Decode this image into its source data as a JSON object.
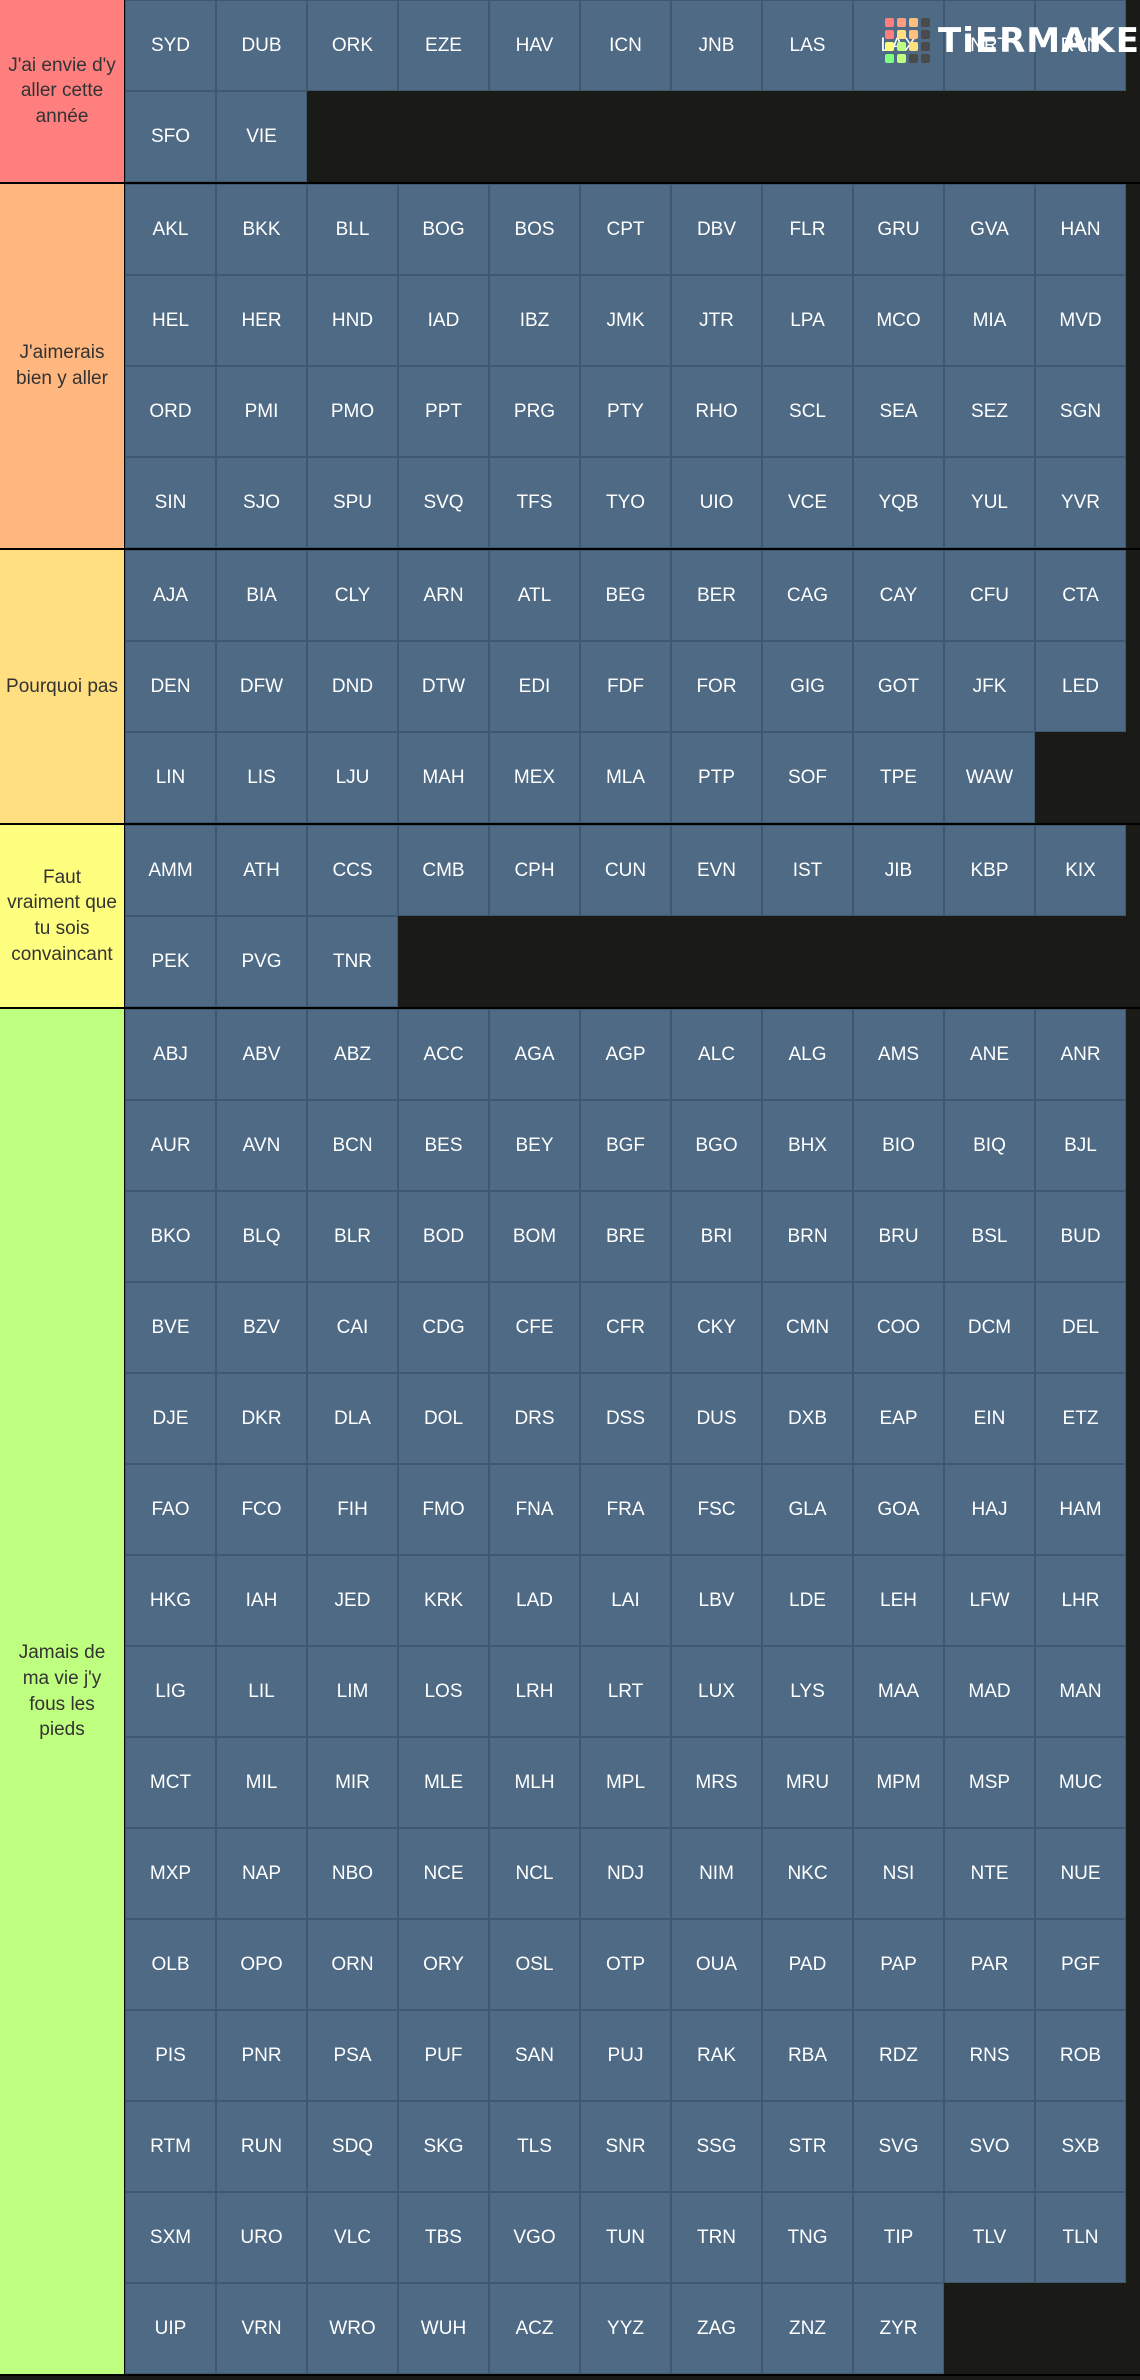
{
  "logo": {
    "text": "TiERMAKER",
    "grid_colors": [
      "#ff7f7f",
      "#ff9f7f",
      "#ffbf7f",
      "#4a4a4a",
      "#ff7f7f",
      "#ffdf7f",
      "#ffbf7f",
      "#4a4a4a",
      "#ffff7f",
      "#bfff7f",
      "#ffdf7f",
      "#4a4a4a",
      "#7fff7f",
      "#bfff7f",
      "#4a4a4a",
      "#4a4a4a"
    ]
  },
  "tiers": [
    {
      "label": "J'ai envie d'y aller cette année",
      "color": "#ff7f7f",
      "items": [
        "SYD",
        "DUB",
        "ORK",
        "EZE",
        "HAV",
        "ICN",
        "JNB",
        "LAS",
        "LAX",
        "NRT",
        "RVN",
        "SFO",
        "VIE"
      ]
    },
    {
      "label": "J'aimerais bien y aller",
      "color": "#ffb77f",
      "items": [
        "AKL",
        "BKK",
        "BLL",
        "BOG",
        "BOS",
        "CPT",
        "DBV",
        "FLR",
        "GRU",
        "GVA",
        "HAN",
        "HEL",
        "HER",
        "HND",
        "IAD",
        "IBZ",
        "JMK",
        "JTR",
        "LPA",
        "MCO",
        "MIA",
        "MVD",
        "ORD",
        "PMI",
        "PMO",
        "PPT",
        "PRG",
        "PTY",
        "RHO",
        "SCL",
        "SEA",
        "SEZ",
        "SGN",
        "SIN",
        "SJO",
        "SPU",
        "SVQ",
        "TFS",
        "TYO",
        "UIO",
        "VCE",
        "YQB",
        "YUL",
        "YVR"
      ]
    },
    {
      "label": "Pourquoi pas",
      "color": "#ffdf80",
      "items": [
        "AJA",
        "BIA",
        "CLY",
        "ARN",
        "ATL",
        "BEG",
        "BER",
        "CAG",
        "CAY",
        "CFU",
        "CTA",
        "DEN",
        "DFW",
        "DND",
        "DTW",
        "EDI",
        "FDF",
        "FOR",
        "GIG",
        "GOT",
        "JFK",
        "LED",
        "LIN",
        "LIS",
        "LJU",
        "MAH",
        "MEX",
        "MLA",
        "PTP",
        "SOF",
        "TPE",
        "WAW"
      ]
    },
    {
      "label": "Faut vraiment que tu sois convaincant",
      "color": "#ffff7f",
      "items": [
        "AMM",
        "ATH",
        "CCS",
        "CMB",
        "CPH",
        "CUN",
        "EVN",
        "IST",
        "JIB",
        "KBP",
        "KIX",
        "PEK",
        "PVG",
        "TNR"
      ]
    },
    {
      "label": "Jamais de ma vie j'y fous les pieds",
      "color": "#bfff7f",
      "items": [
        "ABJ",
        "ABV",
        "ABZ",
        "ACC",
        "AGA",
        "AGP",
        "ALC",
        "ALG",
        "AMS",
        "ANE",
        "ANR",
        "AUR",
        "AVN",
        "BCN",
        "BES",
        "BEY",
        "BGF",
        "BGO",
        "BHX",
        "BIO",
        "BIQ",
        "BJL",
        "BKO",
        "BLQ",
        "BLR",
        "BOD",
        "BOM",
        "BRE",
        "BRI",
        "BRN",
        "BRU",
        "BSL",
        "BUD",
        "BVE",
        "BZV",
        "CAI",
        "CDG",
        "CFE",
        "CFR",
        "CKY",
        "CMN",
        "COO",
        "DCM",
        "DEL",
        "DJE",
        "DKR",
        "DLA",
        "DOL",
        "DRS",
        "DSS",
        "DUS",
        "DXB",
        "EAP",
        "EIN",
        "ETZ",
        "FAO",
        "FCO",
        "FIH",
        "FMO",
        "FNA",
        "FRA",
        "FSC",
        "GLA",
        "GOA",
        "HAJ",
        "HAM",
        "HKG",
        "IAH",
        "JED",
        "KRK",
        "LAD",
        "LAI",
        "LBV",
        "LDE",
        "LEH",
        "LFW",
        "LHR",
        "LIG",
        "LIL",
        "LIM",
        "LOS",
        "LRH",
        "LRT",
        "LUX",
        "LYS",
        "MAA",
        "MAD",
        "MAN",
        "MCT",
        "MIL",
        "MIR",
        "MLE",
        "MLH",
        "MPL",
        "MRS",
        "MRU",
        "MPM",
        "MSP",
        "MUC",
        "MXP",
        "NAP",
        "NBO",
        "NCE",
        "NCL",
        "NDJ",
        "NIM",
        "NKC",
        "NSI",
        "NTE",
        "NUE",
        "OLB",
        "OPO",
        "ORN",
        "ORY",
        "OSL",
        "OTP",
        "OUA",
        "PAD",
        "PAP",
        "PAR",
        "PGF",
        "PIS",
        "PNR",
        "PSA",
        "PUF",
        "SAN",
        "PUJ",
        "RAK",
        "RBA",
        "RDZ",
        "RNS",
        "ROB",
        "RTM",
        "RUN",
        "SDQ",
        "SKG",
        "TLS",
        "SNR",
        "SSG",
        "STR",
        "SVG",
        "SVO",
        "SXB",
        "SXM",
        "URO",
        "VLC",
        "TBS",
        "VGO",
        "TUN",
        "TRN",
        "TNG",
        "TIP",
        "TLV",
        "TLN",
        "UIP",
        "VRN",
        "WRO",
        "WUH",
        "ACZ",
        "YYZ",
        "ZAG",
        "ZNZ",
        "ZYR"
      ]
    }
  ]
}
